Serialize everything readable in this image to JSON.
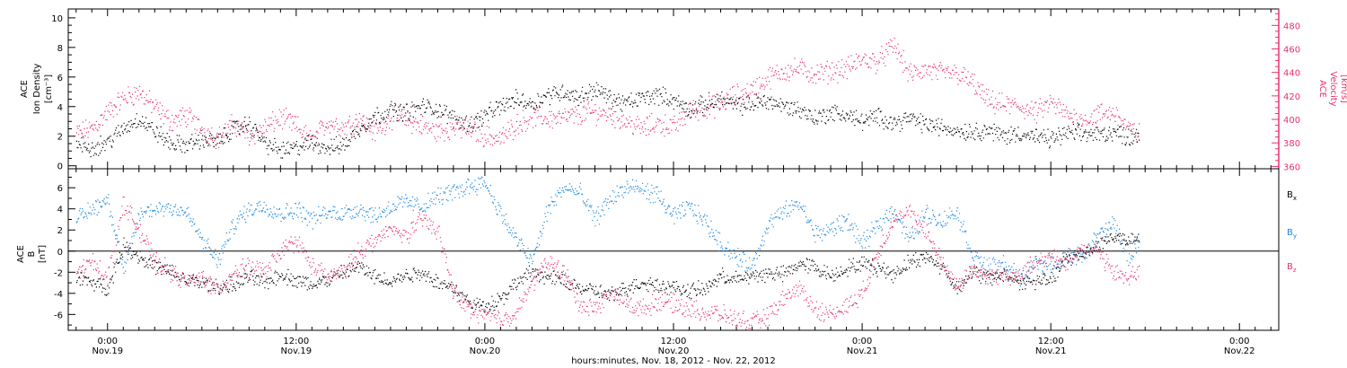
{
  "colors": {
    "black": "#000000",
    "pink": "#e8336b",
    "blue": "#1a86e0"
  },
  "x_axis": {
    "ticks": [
      {
        "time": "0:00",
        "date": "Nov.19",
        "hour": 24
      },
      {
        "time": "12:00",
        "date": "Nov.19",
        "hour": 36
      },
      {
        "time": "0:00",
        "date": "Nov.20",
        "hour": 48
      },
      {
        "time": "12:00",
        "date": "Nov.20",
        "hour": 60
      },
      {
        "time": "0:00",
        "date": "Nov.21",
        "hour": 72
      },
      {
        "time": "12:00",
        "date": "Nov.21",
        "hour": 84
      },
      {
        "time": "0:00",
        "date": "Nov.22",
        "hour": 96
      }
    ],
    "label": "hours:minutes, Nov. 18, 2012 - Nov. 22, 2012",
    "range_hours": [
      21.5,
      98.5
    ]
  },
  "chart_data": [
    {
      "type": "scatter",
      "panel": "top",
      "ylabel_left": [
        "ACE",
        "Ion Density",
        "[cm⁻³]"
      ],
      "ylabel_right": [
        "ACE",
        "Velocity",
        "[km/s]"
      ],
      "left_ticks": [
        0,
        2,
        4,
        6,
        8,
        10
      ],
      "right_ticks": [
        360,
        380,
        400,
        420,
        440,
        460,
        480
      ],
      "ylim_left": [
        -0.2,
        10.6
      ],
      "ylim_right": [
        358,
        494
      ],
      "series": [
        {
          "axis": "left",
          "color": "black",
          "x": [
            22,
            23,
            24,
            25,
            26,
            27,
            28,
            29,
            30,
            31,
            32,
            33,
            34,
            35,
            36,
            37,
            38,
            39,
            40,
            41,
            42,
            43,
            44,
            45,
            46,
            47,
            48,
            49,
            50,
            51,
            52,
            53,
            54,
            55,
            56,
            57,
            58,
            59,
            60,
            61,
            62,
            63,
            64,
            65,
            66,
            67,
            68,
            69,
            70,
            71,
            72,
            73,
            74,
            75,
            76,
            77,
            78,
            79,
            80,
            81,
            82,
            83,
            84,
            85,
            86,
            87,
            88,
            89,
            90
          ],
          "y": [
            1.5,
            1.2,
            1.6,
            2.5,
            3.2,
            2.3,
            1.5,
            1.4,
            1.8,
            1.6,
            2.5,
            2.8,
            1.5,
            1.0,
            1.2,
            1.6,
            1.2,
            1.4,
            2.5,
            3.3,
            3.8,
            3.6,
            4.0,
            3.8,
            3.2,
            2.8,
            3.4,
            4.0,
            4.5,
            4.2,
            4.8,
            5.0,
            4.6,
            5.2,
            4.5,
            4.2,
            4.6,
            4.8,
            4.4,
            3.8,
            4.2,
            4.5,
            4.0,
            4.2,
            4.4,
            4.0,
            3.8,
            3.2,
            3.6,
            3.4,
            3.0,
            3.3,
            2.9,
            3.2,
            2.8,
            2.6,
            2.4,
            2.3,
            2.4,
            2.0,
            2.2,
            1.9,
            1.8,
            2.2,
            2.2,
            2.1,
            2.3,
            1.9,
            2.5
          ]
        },
        {
          "axis": "right",
          "color": "pink",
          "x": [
            22,
            23,
            24,
            25,
            26,
            27,
            28,
            29,
            30,
            31,
            32,
            33,
            34,
            35,
            36,
            37,
            38,
            39,
            40,
            41,
            42,
            43,
            44,
            45,
            46,
            47,
            48,
            49,
            50,
            51,
            52,
            53,
            54,
            55,
            56,
            57,
            58,
            59,
            60,
            61,
            62,
            63,
            64,
            65,
            66,
            67,
            68,
            69,
            70,
            71,
            72,
            73,
            74,
            75,
            76,
            77,
            78,
            79,
            80,
            81,
            82,
            83,
            84,
            85,
            86,
            87,
            88,
            89,
            90
          ],
          "y": [
            388,
            392,
            406,
            418,
            423,
            410,
            398,
            403,
            391,
            384,
            396,
            386,
            393,
            401,
            394,
            381,
            398,
            393,
            401,
            389,
            402,
            399,
            394,
            389,
            393,
            391,
            386,
            383,
            396,
            402,
            401,
            401,
            404,
            406,
            404,
            398,
            392,
            397,
            393,
            407,
            409,
            413,
            421,
            425,
            435,
            441,
            443,
            438,
            441,
            443,
            451,
            449,
            463,
            438,
            442,
            439,
            439,
            431,
            415,
            412,
            411,
            405,
            414,
            404,
            399,
            404,
            406,
            391,
            384
          ]
        }
      ]
    },
    {
      "type": "scatter",
      "panel": "bottom",
      "ylabel_left": [
        "ACE",
        "B",
        "[nT]"
      ],
      "left_ticks": [
        -6,
        -4,
        -2,
        0,
        2,
        4,
        6
      ],
      "ylim": [
        -7.5,
        7.8
      ],
      "legend": [
        "Bx",
        "By",
        "Bz"
      ],
      "legend_placement": "right",
      "zero_line": true,
      "series": [
        {
          "name": "Bx",
          "color": "black",
          "x": [
            22,
            23,
            24,
            25,
            26,
            27,
            28,
            29,
            30,
            31,
            32,
            33,
            34,
            35,
            36,
            37,
            38,
            39,
            40,
            41,
            42,
            43,
            44,
            45,
            46,
            47,
            48,
            49,
            50,
            51,
            52,
            53,
            54,
            55,
            56,
            57,
            58,
            59,
            60,
            61,
            62,
            63,
            64,
            65,
            66,
            67,
            68,
            69,
            70,
            71,
            72,
            73,
            74,
            75,
            76,
            77,
            78,
            79,
            80,
            81,
            82,
            83,
            84,
            85,
            86,
            87,
            88,
            89,
            90
          ],
          "y": [
            -2.5,
            -3.0,
            -3.5,
            0.5,
            -0.5,
            -1.5,
            -2.0,
            -2.8,
            -3.0,
            -3.4,
            -3.2,
            -2.5,
            -3.0,
            -2.2,
            -2.8,
            -3.2,
            -2.7,
            -2.0,
            -1.5,
            -2.5,
            -2.8,
            -2.3,
            -2.0,
            -3.0,
            -3.5,
            -5.0,
            -5.2,
            -4.5,
            -3.0,
            -2.0,
            -2.5,
            -2.8,
            -3.5,
            -3.8,
            -4.2,
            -3.5,
            -3.0,
            -3.2,
            -3.5,
            -3.8,
            -3.6,
            -2.4,
            -2.7,
            -2.4,
            -2.1,
            -2.2,
            -1.2,
            -1.5,
            -2.4,
            -1.6,
            -1.2,
            -1.6,
            -2.2,
            -1.0,
            -0.6,
            -1.4,
            -3.5,
            -2.0,
            -2.6,
            -2.2,
            -2.9,
            -2.9,
            -2.7,
            -0.8,
            -0.2,
            0.6,
            1.4,
            0.8,
            1.4
          ]
        },
        {
          "name": "By",
          "color": "blue",
          "x": [
            22,
            23,
            24,
            25,
            26,
            27,
            28,
            29,
            30,
            31,
            32,
            33,
            34,
            35,
            36,
            37,
            38,
            39,
            40,
            41,
            42,
            43,
            44,
            45,
            46,
            47,
            48,
            49,
            50,
            51,
            52,
            53,
            54,
            55,
            56,
            57,
            58,
            59,
            60,
            61,
            62,
            63,
            64,
            65,
            66,
            67,
            68,
            69,
            70,
            71,
            72,
            73,
            74,
            75,
            76,
            77,
            78,
            79,
            80,
            81,
            82,
            83,
            84,
            85,
            86,
            87,
            88,
            89,
            90
          ],
          "y": [
            3.0,
            4.0,
            5.0,
            -2.0,
            3.5,
            4.0,
            4.2,
            3.6,
            1.0,
            -1.0,
            2.5,
            4.0,
            4.3,
            3.5,
            4.0,
            3.0,
            3.6,
            3.6,
            4.0,
            3.3,
            4.2,
            4.6,
            4.2,
            5.2,
            5.5,
            6.2,
            6.5,
            3.5,
            1.0,
            -1.0,
            4.0,
            6.0,
            5.5,
            3.0,
            5.0,
            6.0,
            5.8,
            5.2,
            3.2,
            4.2,
            2.8,
            0.7,
            -0.6,
            -1.5,
            2.6,
            3.7,
            4.5,
            1.6,
            2.0,
            3.0,
            0.6,
            2.5,
            4.0,
            1.0,
            3.6,
            2.8,
            3.8,
            -0.4,
            -1.6,
            -1.2,
            -2.6,
            -1.1,
            -1.4,
            -0.6,
            -0.4,
            1.4,
            2.6,
            -0.8,
            2.6
          ]
        },
        {
          "name": "Bz",
          "color": "pink",
          "x": [
            22,
            23,
            24,
            25,
            26,
            27,
            28,
            29,
            30,
            31,
            32,
            33,
            34,
            35,
            36,
            37,
            38,
            39,
            40,
            41,
            42,
            43,
            44,
            45,
            46,
            47,
            48,
            49,
            50,
            51,
            52,
            53,
            54,
            55,
            56,
            57,
            58,
            59,
            60,
            61,
            62,
            63,
            64,
            65,
            66,
            67,
            68,
            69,
            70,
            71,
            72,
            73,
            74,
            75,
            76,
            77,
            78,
            79,
            80,
            81,
            82,
            83,
            84,
            85,
            86,
            87,
            88,
            89,
            90
          ],
          "y": [
            -2.0,
            -1.0,
            -2.5,
            4.5,
            2.0,
            -1.0,
            -2.0,
            -3.0,
            -2.5,
            -3.8,
            -2.0,
            -1.5,
            -2.0,
            0.0,
            1.0,
            -1.5,
            -2.5,
            -2.0,
            0.0,
            1.0,
            2.0,
            1.5,
            3.0,
            2.0,
            -4.0,
            -5.5,
            -6.0,
            -6.5,
            -5.8,
            -3.0,
            -1.0,
            -2.0,
            -5.0,
            -5.5,
            -4.0,
            -5.0,
            -5.5,
            -4.8,
            -5.0,
            -5.5,
            -5.8,
            -6.0,
            -6.5,
            -6.8,
            -6.2,
            -4.5,
            -3.5,
            -5.5,
            -6.0,
            -5.2,
            -4.0,
            0.0,
            3.0,
            3.5,
            2.0,
            -1.0,
            -3.4,
            -1.6,
            -2.5,
            -2.2,
            -2.4,
            -1.1,
            -0.7,
            -1.0,
            0.4,
            -0.1,
            -2.2,
            -2.4,
            -1.6
          ]
        }
      ]
    }
  ]
}
